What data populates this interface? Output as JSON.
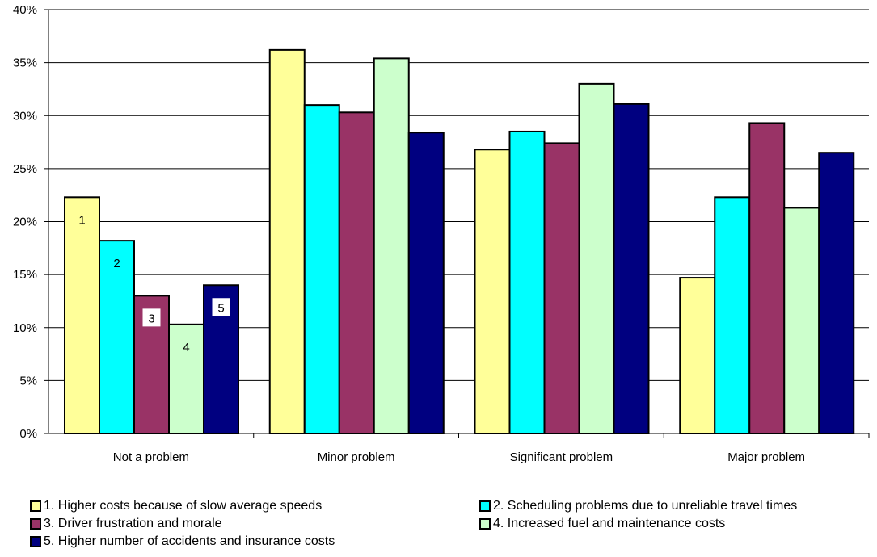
{
  "chart_data": {
    "type": "bar",
    "categories": [
      "Not a problem",
      "Minor problem",
      "Significant problem",
      "Major problem"
    ],
    "series": [
      {
        "name": "1. Higher costs because of slow average speeds",
        "label": "1",
        "color": "#ffff99",
        "values": [
          22.3,
          36.2,
          26.8,
          14.7
        ]
      },
      {
        "name": "2. Scheduling problems due to unreliable travel times",
        "label": "2",
        "color": "#00ffff",
        "values": [
          18.2,
          31.0,
          28.5,
          22.3
        ]
      },
      {
        "name": "3. Driver frustration and morale",
        "label": "3",
        "color": "#993366",
        "values": [
          13.0,
          30.3,
          27.4,
          29.3
        ]
      },
      {
        "name": "4. Increased fuel and maintenance costs",
        "label": "4",
        "color": "#ccffcc",
        "values": [
          10.3,
          35.4,
          33.0,
          21.3
        ]
      },
      {
        "name": "5. Higher number of accidents and insurance costs",
        "label": "5",
        "color": "#000080",
        "values": [
          14.0,
          28.4,
          31.1,
          26.5
        ]
      }
    ],
    "yticks": [
      "0%",
      "5%",
      "10%",
      "15%",
      "20%",
      "25%",
      "30%",
      "35%",
      "40%"
    ],
    "ylim": [
      0,
      40
    ],
    "grid": true,
    "legend_position": "bottom",
    "title": "",
    "xlabel": "",
    "ylabel": ""
  }
}
